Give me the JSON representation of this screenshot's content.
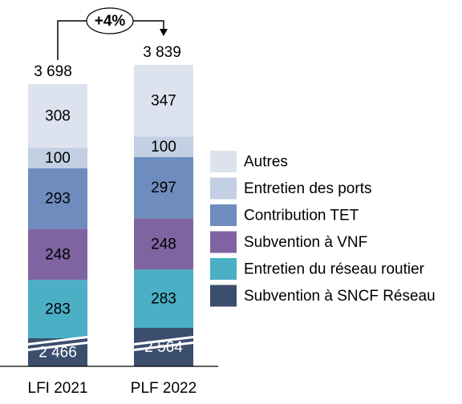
{
  "chart_data": {
    "type": "bar",
    "stacked": true,
    "categories": [
      "LFI 2021",
      "PLF 2022"
    ],
    "series": [
      {
        "name": "Subvention à SNCF Réseau",
        "values": [
          2466,
          2564
        ],
        "labels": [
          "2 466",
          "2 564"
        ],
        "color": "#3B4E6E",
        "label_color": "#ffffff"
      },
      {
        "name": "Entretien du réseau routier",
        "values": [
          283,
          283
        ],
        "labels": [
          "283",
          "283"
        ],
        "color": "#4BAFC6",
        "label_color": "#000000"
      },
      {
        "name": "Subvention à VNF",
        "values": [
          248,
          248
        ],
        "labels": [
          "248",
          "248"
        ],
        "color": "#8064A2",
        "label_color": "#000000"
      },
      {
        "name": "Contribution TET",
        "values": [
          293,
          297
        ],
        "labels": [
          "293",
          "297"
        ],
        "color": "#6E8DBE",
        "label_color": "#000000"
      },
      {
        "name": "Entretien des ports",
        "values": [
          100,
          100
        ],
        "labels": [
          "100",
          "100"
        ],
        "color": "#C3CFE2",
        "label_color": "#000000"
      },
      {
        "name": "Autres",
        "values": [
          308,
          347
        ],
        "labels": [
          "308",
          "347"
        ],
        "color": "#DCE3EE",
        "label_color": "#000000"
      }
    ],
    "totals": [
      "3 698",
      "3 839"
    ],
    "total_values": [
      3698,
      3839
    ],
    "growth_annotation": "+4%",
    "axis_break": true,
    "legend_position": "right",
    "legend_order": [
      "Autres",
      "Entretien des ports",
      "Contribution TET",
      "Subvention à VNF",
      "Entretien du réseau routier",
      "Subvention à SNCF Réseau"
    ],
    "title": "",
    "xlabel": "",
    "ylabel": ""
  }
}
